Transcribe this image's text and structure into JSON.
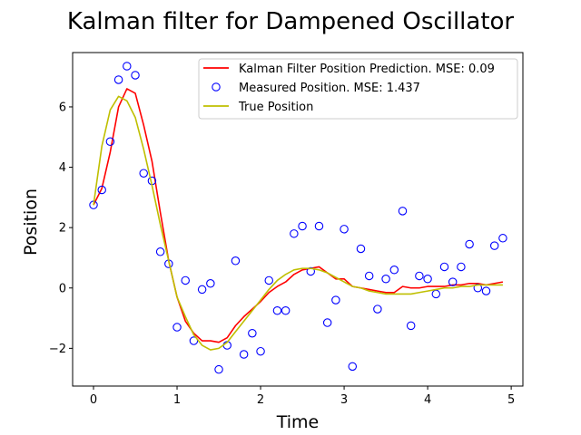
{
  "chart_data": {
    "type": "line",
    "title": "Kalman filter for Dampened Oscillator",
    "xlabel": "Time",
    "ylabel": "Position",
    "xlim": [
      -0.25,
      5.14
    ],
    "ylim": [
      -3.25,
      7.8
    ],
    "xticks": [
      0,
      1,
      2,
      3,
      4,
      5
    ],
    "xtick_labels": [
      "0",
      "1",
      "2",
      "3",
      "4",
      "5"
    ],
    "yticks": [
      -2,
      0,
      2,
      4,
      6
    ],
    "ytick_labels": [
      "−2",
      "0",
      "2",
      "4",
      "6"
    ],
    "grid": false,
    "legend_position": "top-right",
    "series": [
      {
        "name": "Kalman Filter Position Prediction. MSE: 0.09",
        "kind": "line",
        "color": "#ff0000",
        "x": [
          0,
          0.1,
          0.2,
          0.3,
          0.4,
          0.5,
          0.6,
          0.7,
          0.8,
          0.9,
          1.0,
          1.1,
          1.2,
          1.3,
          1.4,
          1.5,
          1.6,
          1.7,
          1.8,
          1.9,
          2.0,
          2.1,
          2.2,
          2.3,
          2.4,
          2.5,
          2.6,
          2.7,
          2.8,
          2.9,
          3.0,
          3.1,
          3.2,
          3.3,
          3.4,
          3.5,
          3.6,
          3.7,
          3.8,
          3.9,
          4.0,
          4.1,
          4.2,
          4.3,
          4.4,
          4.5,
          4.6,
          4.7,
          4.8,
          4.9
        ],
        "y": [
          2.75,
          3.3,
          4.5,
          6.0,
          6.6,
          6.45,
          5.4,
          4.2,
          2.5,
          0.9,
          -0.3,
          -1.1,
          -1.5,
          -1.75,
          -1.75,
          -1.8,
          -1.65,
          -1.25,
          -0.95,
          -0.7,
          -0.45,
          -0.15,
          0.05,
          0.2,
          0.45,
          0.6,
          0.65,
          0.7,
          0.5,
          0.3,
          0.3,
          0.05,
          0.0,
          -0.05,
          -0.1,
          -0.15,
          -0.15,
          0.05,
          0.0,
          0.0,
          0.05,
          0.05,
          0.05,
          0.1,
          0.1,
          0.15,
          0.15,
          0.1,
          0.15,
          0.2
        ]
      },
      {
        "name": "Measured Position. MSE: 1.437",
        "kind": "scatter",
        "color": "#0000ff",
        "x": [
          0,
          0.1,
          0.2,
          0.3,
          0.4,
          0.5,
          0.6,
          0.7,
          0.8,
          0.9,
          1.0,
          1.1,
          1.2,
          1.3,
          1.4,
          1.5,
          1.6,
          1.7,
          1.8,
          1.9,
          2.0,
          2.1,
          2.2,
          2.3,
          2.4,
          2.5,
          2.6,
          2.7,
          2.8,
          2.9,
          3.0,
          3.1,
          3.2,
          3.3,
          3.4,
          3.5,
          3.6,
          3.7,
          3.8,
          3.9,
          4.0,
          4.1,
          4.2,
          4.3,
          4.4,
          4.5,
          4.6,
          4.7,
          4.8,
          4.9
        ],
        "y": [
          2.75,
          3.25,
          4.85,
          6.9,
          7.35,
          7.05,
          3.8,
          3.55,
          1.2,
          0.8,
          -1.3,
          0.25,
          -1.75,
          -0.05,
          0.15,
          -2.7,
          -1.9,
          0.9,
          -2.2,
          -1.5,
          -2.1,
          0.25,
          -0.75,
          -0.75,
          1.8,
          2.05,
          0.55,
          2.05,
          -1.15,
          -0.4,
          1.95,
          -2.6,
          1.3,
          0.4,
          -0.7,
          0.3,
          0.6,
          2.55,
          -1.25,
          0.4,
          0.3,
          -0.2,
          0.7,
          0.2,
          0.7,
          1.45,
          0.0,
          -0.1,
          1.4,
          1.65
        ]
      },
      {
        "name": "True Position",
        "kind": "line",
        "color": "#bfbf00",
        "x": [
          0,
          0.1,
          0.2,
          0.3,
          0.4,
          0.5,
          0.6,
          0.7,
          0.8,
          0.9,
          1.0,
          1.1,
          1.2,
          1.3,
          1.4,
          1.5,
          1.6,
          1.7,
          1.8,
          1.9,
          2.0,
          2.1,
          2.2,
          2.3,
          2.4,
          2.5,
          2.6,
          2.7,
          2.8,
          2.9,
          3.0,
          3.1,
          3.2,
          3.3,
          3.4,
          3.5,
          3.6,
          3.7,
          3.8,
          3.9,
          4.0,
          4.1,
          4.2,
          4.3,
          4.4,
          4.5,
          4.6,
          4.7,
          4.8,
          4.9
        ],
        "y": [
          2.75,
          4.7,
          5.9,
          6.35,
          6.2,
          5.65,
          4.6,
          3.4,
          2.1,
          0.9,
          -0.3,
          -0.95,
          -1.55,
          -1.9,
          -2.05,
          -2.0,
          -1.8,
          -1.45,
          -1.1,
          -0.75,
          -0.4,
          -0.05,
          0.25,
          0.45,
          0.6,
          0.65,
          0.65,
          0.6,
          0.5,
          0.35,
          0.2,
          0.05,
          0.0,
          -0.1,
          -0.15,
          -0.2,
          -0.2,
          -0.2,
          -0.2,
          -0.15,
          -0.1,
          -0.05,
          0.0,
          0.0,
          0.05,
          0.05,
          0.1,
          0.1,
          0.1,
          0.1
        ]
      }
    ]
  }
}
